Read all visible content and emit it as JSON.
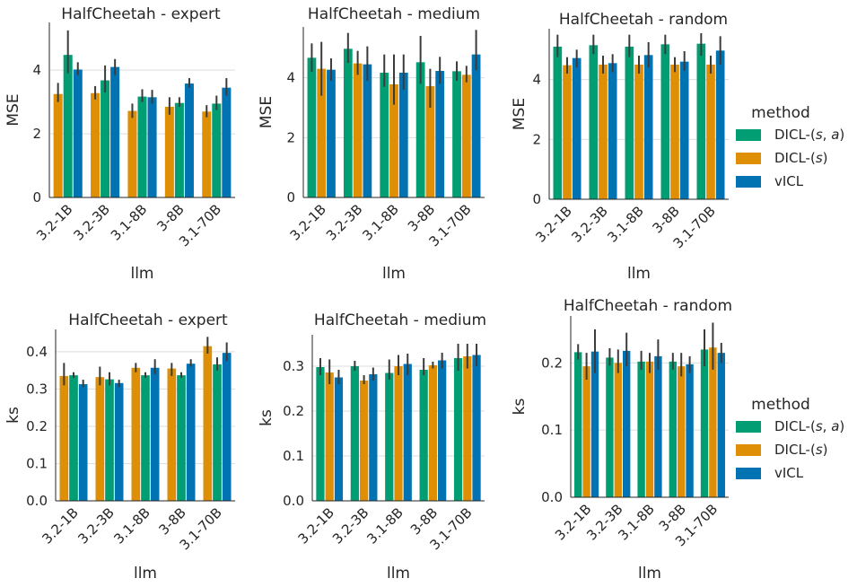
{
  "chart_data": [
    {
      "type": "bar",
      "title": "HalfCheetah - expert",
      "xlabel": "llm",
      "ylabel": "MSE",
      "categories": [
        "3.2-1B",
        "3.2-3B",
        "3.1-8B",
        "3-8B",
        "3.1-70B"
      ],
      "ylim": [
        0,
        5.5
      ],
      "yticks": [
        "0",
        "2",
        "4"
      ],
      "ytick_values": [
        0,
        2,
        4
      ],
      "grid": "horizontal",
      "series": [
        {
          "name": "DICL-(s)",
          "color": "#de8f05",
          "values": [
            3.25,
            3.28,
            2.72,
            2.85,
            2.7
          ],
          "err_low": [
            3.0,
            3.08,
            2.5,
            2.6,
            2.52
          ],
          "err_high": [
            3.6,
            3.5,
            2.95,
            3.15,
            2.9
          ]
        },
        {
          "name": "DICL-(s,a)",
          "color": "#029e73",
          "values": [
            4.48,
            3.68,
            3.17,
            2.97,
            2.95
          ],
          "err_low": [
            3.9,
            3.3,
            3.0,
            2.85,
            2.75
          ],
          "err_high": [
            5.25,
            4.15,
            3.4,
            3.15,
            3.2
          ]
        },
        {
          "name": "vICL",
          "color": "#0173b2",
          "values": [
            4.02,
            4.1,
            3.15,
            3.58,
            3.45
          ],
          "err_low": [
            3.85,
            3.85,
            2.95,
            3.45,
            3.2
          ],
          "err_high": [
            4.25,
            4.35,
            3.38,
            3.75,
            3.75
          ]
        }
      ]
    },
    {
      "type": "bar",
      "title": "HalfCheetah - medium",
      "xlabel": "llm",
      "ylabel": "MSE",
      "categories": [
        "3.2-1B",
        "3.2-3B",
        "3.1-8B",
        "3-8B",
        "3.1-70B"
      ],
      "ylim": [
        0,
        5.7
      ],
      "yticks": [
        "0",
        "2",
        "4"
      ],
      "ytick_values": [
        0,
        2,
        4
      ],
      "grid": "horizontal",
      "series": [
        {
          "name": "DICL-(s,a)",
          "color": "#029e73",
          "values": [
            4.67,
            4.97,
            4.17,
            4.52,
            4.22
          ],
          "err_low": [
            4.2,
            4.5,
            3.7,
            3.8,
            3.9
          ],
          "err_high": [
            5.15,
            5.5,
            4.78,
            5.4,
            4.55
          ]
        },
        {
          "name": "DICL-(s)",
          "color": "#de8f05",
          "values": [
            4.3,
            4.48,
            3.78,
            3.72,
            4.1
          ],
          "err_low": [
            3.4,
            4.1,
            3.1,
            3.0,
            3.85
          ],
          "err_high": [
            5.2,
            4.9,
            4.78,
            4.3,
            4.4
          ]
        },
        {
          "name": "vICL",
          "color": "#0173b2",
          "values": [
            4.27,
            4.45,
            4.17,
            4.23,
            4.78
          ],
          "err_low": [
            3.9,
            3.9,
            3.6,
            3.8,
            4.25
          ],
          "err_high": [
            4.65,
            5.05,
            4.78,
            4.7,
            5.6
          ]
        }
      ]
    },
    {
      "type": "bar",
      "title": "HalfCheetah - random",
      "xlabel": "llm",
      "ylabel": "MSE",
      "categories": [
        "3.2-1B",
        "3.2-3B",
        "3.1-8B",
        "3-8B",
        "3.1-70B"
      ],
      "ylim": [
        0,
        5.7
      ],
      "yticks": [
        "0",
        "2",
        "4"
      ],
      "ytick_values": [
        0,
        2,
        4
      ],
      "grid": "horizontal",
      "series": [
        {
          "name": "DICL-(s,a)",
          "color": "#029e73",
          "values": [
            5.1,
            5.15,
            5.1,
            5.18,
            5.2
          ],
          "err_low": [
            4.75,
            4.85,
            4.75,
            4.85,
            4.8
          ],
          "err_high": [
            5.5,
            5.5,
            5.5,
            5.5,
            5.55
          ]
        },
        {
          "name": "DICL-(s)",
          "color": "#de8f05",
          "values": [
            4.48,
            4.5,
            4.5,
            4.5,
            4.5
          ],
          "err_low": [
            4.2,
            4.2,
            4.2,
            4.25,
            4.2
          ],
          "err_high": [
            4.75,
            4.8,
            4.8,
            4.75,
            4.8
          ]
        },
        {
          "name": "vICL",
          "color": "#0173b2",
          "values": [
            4.72,
            4.55,
            4.82,
            4.6,
            4.97
          ],
          "err_low": [
            4.4,
            4.25,
            4.4,
            4.3,
            4.5
          ],
          "err_high": [
            5.0,
            4.85,
            5.25,
            4.95,
            5.45
          ]
        }
      ]
    },
    {
      "type": "bar",
      "title": "HalfCheetah - expert",
      "xlabel": "llm",
      "ylabel": "ks",
      "categories": [
        "3.2-1B",
        "3.2-3B",
        "3.1-8B",
        "3-8B",
        "3.1-70B"
      ],
      "ylim": [
        0,
        0.46
      ],
      "yticks": [
        "0.0",
        "0.1",
        "0.2",
        "0.3",
        "0.4"
      ],
      "ytick_values": [
        0,
        0.1,
        0.2,
        0.3,
        0.4
      ],
      "grid": "horizontal",
      "series": [
        {
          "name": "DICL-(s)",
          "color": "#de8f05",
          "values": [
            0.335,
            0.332,
            0.357,
            0.355,
            0.415
          ],
          "err_low": [
            0.31,
            0.31,
            0.345,
            0.335,
            0.395
          ],
          "err_high": [
            0.37,
            0.36,
            0.37,
            0.37,
            0.44
          ]
        },
        {
          "name": "DICL-(s,a)",
          "color": "#029e73",
          "values": [
            0.337,
            0.326,
            0.337,
            0.337,
            0.366
          ],
          "err_low": [
            0.33,
            0.31,
            0.33,
            0.33,
            0.35
          ],
          "err_high": [
            0.345,
            0.345,
            0.345,
            0.345,
            0.385
          ]
        },
        {
          "name": "vICL",
          "color": "#0173b2",
          "values": [
            0.313,
            0.316,
            0.357,
            0.368,
            0.397
          ],
          "err_low": [
            0.305,
            0.305,
            0.34,
            0.36,
            0.375
          ],
          "err_high": [
            0.325,
            0.325,
            0.38,
            0.38,
            0.425
          ]
        }
      ]
    },
    {
      "type": "bar",
      "title": "HalfCheetah - medium",
      "xlabel": "llm",
      "ylabel": "ks",
      "categories": [
        "3.2-1B",
        "3.2-3B",
        "3.1-8B",
        "3-8B",
        "3.1-70B"
      ],
      "ylim": [
        0,
        0.37
      ],
      "yticks": [
        "0.0",
        "0.1",
        "0.2",
        "0.3"
      ],
      "ytick_values": [
        0,
        0.1,
        0.2,
        0.3
      ],
      "grid": "horizontal",
      "series": [
        {
          "name": "DICL-(s,a)",
          "color": "#029e73",
          "values": [
            0.298,
            0.3,
            0.285,
            0.292,
            0.318
          ],
          "err_low": [
            0.28,
            0.29,
            0.27,
            0.28,
            0.29
          ],
          "err_high": [
            0.318,
            0.312,
            0.315,
            0.318,
            0.35
          ]
        },
        {
          "name": "DICL-(s)",
          "color": "#de8f05",
          "values": [
            0.286,
            0.268,
            0.3,
            0.302,
            0.322
          ],
          "err_low": [
            0.26,
            0.26,
            0.28,
            0.295,
            0.295
          ],
          "err_high": [
            0.315,
            0.28,
            0.325,
            0.31,
            0.35
          ]
        },
        {
          "name": "vICL",
          "color": "#0173b2",
          "values": [
            0.275,
            0.282,
            0.305,
            0.313,
            0.325
          ],
          "err_low": [
            0.26,
            0.268,
            0.28,
            0.295,
            0.3
          ],
          "err_high": [
            0.292,
            0.297,
            0.328,
            0.33,
            0.35
          ]
        }
      ]
    },
    {
      "type": "bar",
      "title": "HalfCheetah - random",
      "xlabel": "llm",
      "ylabel": "ks",
      "categories": [
        "3.2-1B",
        "3.2-3B",
        "3.1-8B",
        "3-8B",
        "3.1-70B"
      ],
      "ylim": [
        0,
        0.27
      ],
      "yticks": [
        "0.0",
        "0.1",
        "0.2"
      ],
      "ytick_values": [
        0,
        0.1,
        0.2
      ],
      "grid": "horizontal",
      "series": [
        {
          "name": "DICL-(s,a)",
          "color": "#029e73",
          "values": [
            0.216,
            0.208,
            0.202,
            0.202,
            0.22
          ],
          "err_low": [
            0.205,
            0.196,
            0.19,
            0.19,
            0.195
          ],
          "err_high": [
            0.228,
            0.222,
            0.218,
            0.215,
            0.25
          ]
        },
        {
          "name": "DICL-(s)",
          "color": "#de8f05",
          "values": [
            0.195,
            0.2,
            0.202,
            0.195,
            0.223
          ],
          "err_low": [
            0.175,
            0.185,
            0.185,
            0.18,
            0.19
          ],
          "err_high": [
            0.215,
            0.22,
            0.215,
            0.215,
            0.26
          ]
        },
        {
          "name": "vICL",
          "color": "#0173b2",
          "values": [
            0.217,
            0.218,
            0.21,
            0.198,
            0.215
          ],
          "err_low": [
            0.185,
            0.195,
            0.19,
            0.185,
            0.2
          ],
          "err_high": [
            0.25,
            0.245,
            0.235,
            0.21,
            0.23
          ]
        }
      ]
    }
  ],
  "legends": [
    {
      "title": "method",
      "entries": [
        {
          "label": "DICL-(s,a)",
          "color": "#029e73"
        },
        {
          "label": "DICL-(s)",
          "color": "#de8f05"
        },
        {
          "label": "vICL",
          "color": "#0173b2"
        }
      ]
    },
    {
      "title": "method",
      "entries": [
        {
          "label": "DICL-(s,a)",
          "color": "#029e73"
        },
        {
          "label": "DICL-(s)",
          "color": "#de8f05"
        },
        {
          "label": "vICL",
          "color": "#0173b2"
        }
      ]
    }
  ]
}
